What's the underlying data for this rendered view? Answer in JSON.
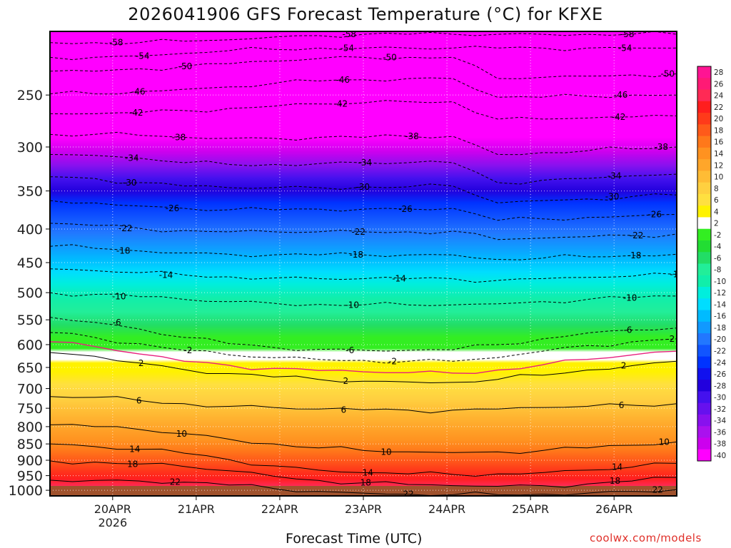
{
  "chart_data": {
    "type": "heatmap",
    "title": "2026041906 GFS Forecast Temperature (°C) for KFXE",
    "xlabel": "Forecast Time (UTC)",
    "ylabel": "",
    "credit": "coolwx.com/models",
    "y_axis": {
      "scale": "log",
      "reversed": true,
      "range_hPa": [
        1020,
        200
      ],
      "ticks": [
        250,
        300,
        350,
        400,
        450,
        500,
        550,
        600,
        650,
        700,
        750,
        800,
        850,
        900,
        950,
        1000
      ]
    },
    "x_axis": {
      "range": [
        "2026-04-19T06:00Z",
        "2026-04-26T18:00Z"
      ],
      "ticks": [
        {
          "label": "20APR",
          "sublabel": "2026",
          "time": "2026-04-20T00:00Z"
        },
        {
          "label": "21APR",
          "sublabel": "",
          "time": "2026-04-21T00:00Z"
        },
        {
          "label": "22APR",
          "sublabel": "",
          "time": "2026-04-22T00:00Z"
        },
        {
          "label": "23APR",
          "sublabel": "",
          "time": "2026-04-23T00:00Z"
        },
        {
          "label": "24APR",
          "sublabel": "",
          "time": "2026-04-24T00:00Z"
        },
        {
          "label": "25APR",
          "sublabel": "",
          "time": "2026-04-25T00:00Z"
        },
        {
          "label": "26APR",
          "sublabel": "",
          "time": "2026-04-26T00:00Z"
        }
      ]
    },
    "grid": true,
    "legend": "right",
    "colorbar": {
      "labels": [
        "28",
        "26",
        "24",
        "22",
        "20",
        "18",
        "16",
        "14",
        "12",
        "10",
        "8",
        "6",
        "4",
        "2",
        "-2",
        "-4",
        "-6",
        "-8",
        "-10",
        "-12",
        "-14",
        "-16",
        "-18",
        "-20",
        "-22",
        "-24",
        "-26",
        "-28",
        "-30",
        "-32",
        "-34",
        "-36",
        "-38",
        "-40"
      ],
      "colors": [
        "#ff1493",
        "#ff1a75",
        "#ff2a55",
        "#ff1e1e",
        "#ff3a1a",
        "#ff5a1a",
        "#ff781a",
        "#ff9220",
        "#ffa62a",
        "#ffbc35",
        "#ffd040",
        "#ffe040",
        "#fff200",
        "#ffffff",
        "#33ee22",
        "#22dd33",
        "#22dd66",
        "#22ee99",
        "#11eeaa",
        "#00eedd",
        "#00ddff",
        "#00bbff",
        "#1199ff",
        "#2277ff",
        "#1155ff",
        "#0033ff",
        "#1111ee",
        "#2200dd",
        "#4411ee",
        "#6611ee",
        "#8811ee",
        "#aa11ee",
        "#cc00ee",
        "#ff00ff"
      ]
    },
    "isotherms": [
      {
        "label": "-58",
        "p_hPa": [
          208,
          208,
          208,
          207,
          206,
          204,
          203,
          202,
          202,
          202,
          202,
          202,
          202,
          202,
          202
        ]
      },
      {
        "label": "-54",
        "p_hPa": [
          219,
          219,
          218,
          216,
          214,
          213,
          212,
          212,
          212,
          212,
          212,
          212,
          212,
          212,
          212
        ]
      },
      {
        "label": "-50",
        "p_hPa": [
          230,
          230,
          228,
          226,
          224,
          222,
          220,
          219,
          219,
          219,
          236,
          235,
          234,
          233,
          232
        ]
      },
      {
        "label": "-46",
        "p_hPa": [
          249,
          249,
          247,
          245,
          243,
          240,
          238,
          237,
          236,
          236,
          252,
          252,
          251,
          250,
          250
        ]
      },
      {
        "label": "-42",
        "p_hPa": [
          267,
          267,
          266,
          264,
          262,
          260,
          258,
          257,
          256,
          256,
          272,
          272,
          271,
          270,
          269
        ]
      },
      {
        "label": "-38",
        "p_hPa": [
          287,
          287,
          288,
          290,
          291,
          291,
          290,
          290,
          289,
          289,
          308,
          306,
          304,
          302,
          300
        ]
      },
      {
        "label": "-34",
        "p_hPa": [
          308,
          309,
          312,
          317,
          319,
          319,
          318,
          317,
          317,
          317,
          340,
          337,
          335,
          332,
          330
        ]
      },
      {
        "label": "-30",
        "p_hPa": [
          333,
          335,
          340,
          344,
          346,
          346,
          346,
          345,
          345,
          344,
          365,
          362,
          360,
          357,
          355
        ]
      },
      {
        "label": "-26",
        "p_hPa": [
          362,
          365,
          369,
          372,
          374,
          374,
          373,
          373,
          373,
          372,
          388,
          386,
          384,
          382,
          380
        ]
      },
      {
        "label": "-22",
        "p_hPa": [
          392,
          395,
          399,
          402,
          404,
          404,
          404,
          404,
          404,
          403,
          415,
          413,
          411,
          409,
          407
        ]
      },
      {
        "label": "-18",
        "p_hPa": [
          425,
          428,
          432,
          435,
          437,
          438,
          438,
          438,
          438,
          438,
          445,
          443,
          441,
          439,
          437
        ]
      },
      {
        "label": "-14",
        "p_hPa": [
          460,
          463,
          466,
          470,
          473,
          475,
          476,
          476,
          476,
          476,
          479,
          476,
          474,
          472,
          469
        ]
      },
      {
        "label": "-10",
        "p_hPa": [
          500,
          503,
          507,
          512,
          516,
          519,
          521,
          522,
          522,
          522,
          520,
          516,
          512,
          509,
          506
        ]
      },
      {
        "label": "-6",
        "p_hPa": [
          545,
          555,
          568,
          585,
          598,
          606,
          610,
          612,
          612,
          611,
          600,
          588,
          576,
          570,
          566
        ]
      },
      {
        "label": "-2",
        "p_hPa": [
          575,
          585,
          598,
          612,
          622,
          628,
          632,
          634,
          636,
          636,
          628,
          614,
          602,
          594,
          588
        ]
      },
      {
        "label": "2",
        "p_hPa": [
          617,
          625,
          640,
          655,
          664,
          672,
          678,
          682,
          684,
          685,
          678,
          668,
          656,
          646,
          636
        ]
      },
      {
        "label": "6",
        "p_hPa": [
          720,
          722,
          730,
          738,
          745,
          748,
          752,
          754,
          755,
          755,
          752,
          748,
          745,
          742,
          738
        ]
      },
      {
        "label": "10",
        "p_hPa": [
          795,
          800,
          808,
          820,
          836,
          850,
          862,
          870,
          874,
          876,
          874,
          870,
          862,
          854,
          844
        ]
      },
      {
        "label": "14",
        "p_hPa": [
          850,
          858,
          866,
          878,
          898,
          918,
          932,
          940,
          944,
          946,
          944,
          940,
          932,
          922,
          910
        ]
      },
      {
        "label": "18",
        "p_hPa": [
          902,
          906,
          912,
          920,
          934,
          952,
          966,
          974,
          980,
          984,
          986,
          984,
          978,
          968,
          956
        ]
      },
      {
        "label": "22",
        "p_hPa": [
          965,
          966,
          968,
          972,
          982,
          994,
          1004,
          1010,
          1014,
          1016,
          1016,
          1014,
          1010,
          1004,
          998
        ]
      }
    ],
    "freezing_line": {
      "color": "#e8207e",
      "p_hPa": [
        594,
        604,
        620,
        636,
        645,
        652,
        657,
        660,
        662,
        663,
        656,
        644,
        632,
        622,
        614
      ]
    }
  }
}
